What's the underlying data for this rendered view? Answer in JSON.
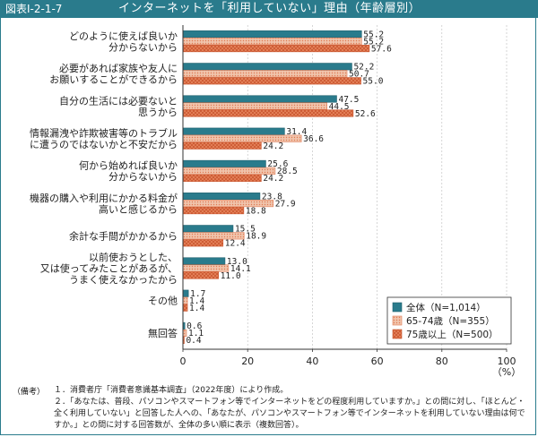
{
  "header": {
    "figure_label": "図表Ⅰ-2-1-7",
    "title": "インターネットを「利用していない」理由（年齢層別）"
  },
  "chart_data": {
    "type": "bar",
    "orientation": "horizontal",
    "categories": [
      [
        "どのように使えば良いか",
        "分からないから"
      ],
      [
        "必要があれば家族や友人に",
        "お願いすることができるから"
      ],
      [
        "自分の生活には必要ないと",
        "思うから"
      ],
      [
        "情報漏洩や詐欺被害等のトラブル",
        "に遭うのではないかと不安だから"
      ],
      [
        "何から始めれば良いか",
        "分からないから"
      ],
      [
        "機器の購入や利用にかかる料金が",
        "高いと感じるから"
      ],
      [
        "余計な手間がかかるから"
      ],
      [
        "以前使おうとした、",
        "又は使ってみたことがあるが、",
        "うまく使えなかったから"
      ],
      [
        "その他"
      ],
      [
        "無回答"
      ]
    ],
    "series": [
      {
        "name": "全体（N=1,014）",
        "values": [
          55.2,
          52.2,
          47.5,
          31.4,
          25.6,
          23.8,
          15.5,
          13.0,
          1.7,
          0.6
        ],
        "labels": [
          "55.2",
          "52.2",
          "47.5",
          "31.4",
          "25.6",
          "23.8",
          "15.5",
          "13.0",
          "1.7",
          "0.6"
        ],
        "fill": "#2a7b8c"
      },
      {
        "name": "65-74歳（N=355）",
        "values": [
          55.2,
          50.7,
          44.5,
          36.6,
          28.5,
          27.9,
          18.9,
          14.1,
          1.4,
          1.1
        ],
        "labels": [
          "55.2",
          "50.7",
          "44.5",
          "36.6",
          "28.5",
          "27.9",
          "18.9",
          "14.1",
          "1.4",
          "1.1"
        ],
        "fill": "#f5d9cc"
      },
      {
        "name": "75歳以上（N=500）",
        "values": [
          57.6,
          55.0,
          52.6,
          24.2,
          24.2,
          18.8,
          12.4,
          11.0,
          1.4,
          0.4
        ],
        "labels": [
          "57.6",
          "55.0",
          "52.6",
          "24.2",
          "24.2",
          "18.8",
          "12.4",
          "11.0",
          "1.4",
          "0.4"
        ],
        "fill": "#e8865e"
      }
    ],
    "xlim": [
      0,
      100
    ],
    "xticks": [
      "0",
      "20",
      "40",
      "60",
      "80",
      "100"
    ],
    "unit_label": "（%）",
    "legend_position": "bottom-right"
  },
  "notes": {
    "prefix": "（備考）",
    "items": [
      "１．消費者庁「消費者意識基本調査」（2022年度）により作成。",
      "２．「あなたは、普段、パソコンやスマートフォン等でインターネットをどの程度利用していますか。」との問に対し、「ほとんど・全く利用していない」と回答した人への、「あなたが、パソコンやスマートフォン等でインターネットを利用していない理由は何ですか。」との問に対する回答数が、全体の多い順に表示（複数回答）。"
    ]
  }
}
